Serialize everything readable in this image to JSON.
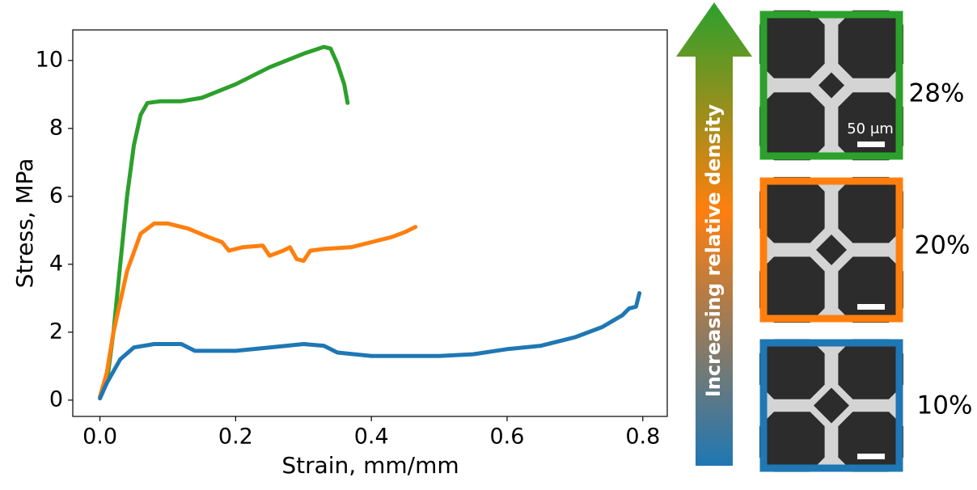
{
  "chart_data": {
    "type": "line",
    "xlabel": "Strain, mm/mm",
    "ylabel": "Stress, MPa",
    "xlim": [
      -0.04,
      0.836
    ],
    "ylim": [
      -0.48,
      10.9
    ],
    "xticks": [
      {
        "value": 0,
        "label": "0.0"
      },
      0.2,
      0.4,
      0.6,
      0.8
    ],
    "yticks": [
      0,
      2,
      4,
      6,
      8,
      10
    ],
    "grid": false,
    "arrow_label": "Increasing relative density",
    "scale_bar_label": "50 μm",
    "series": [
      {
        "name": "28%",
        "color": "#2ca02c",
        "x": [
          0,
          0.01,
          0.02,
          0.03,
          0.04,
          0.05,
          0.06,
          0.07,
          0.09,
          0.12,
          0.15,
          0.2,
          0.25,
          0.3,
          0.33,
          0.34,
          0.35,
          0.355,
          0.36,
          0.365
        ],
        "values": [
          0.1,
          0.5,
          2,
          4,
          6,
          7.5,
          8.4,
          8.75,
          8.8,
          8.8,
          8.9,
          9.3,
          9.8,
          10.2,
          10.4,
          10.35,
          9.9,
          9.6,
          9.3,
          8.75
        ]
      },
      {
        "name": "20%",
        "color": "#ff7f0e",
        "x": [
          0,
          0.01,
          0.02,
          0.04,
          0.06,
          0.08,
          0.1,
          0.13,
          0.16,
          0.18,
          0.19,
          0.21,
          0.24,
          0.25,
          0.27,
          0.28,
          0.29,
          0.3,
          0.31,
          0.33,
          0.37,
          0.4,
          0.43,
          0.45,
          0.465
        ],
        "values": [
          0.1,
          0.8,
          2,
          3.8,
          4.9,
          5.2,
          5.2,
          5.05,
          4.8,
          4.65,
          4.4,
          4.5,
          4.55,
          4.25,
          4.4,
          4.5,
          4.15,
          4.1,
          4.4,
          4.45,
          4.5,
          4.65,
          4.8,
          4.95,
          5.1
        ]
      },
      {
        "name": "10%",
        "color": "#1f77b4",
        "x": [
          0,
          0.01,
          0.03,
          0.05,
          0.08,
          0.12,
          0.14,
          0.2,
          0.25,
          0.3,
          0.33,
          0.35,
          0.4,
          0.45,
          0.5,
          0.55,
          0.6,
          0.65,
          0.7,
          0.74,
          0.77,
          0.78,
          0.79,
          0.795
        ],
        "values": [
          0.05,
          0.5,
          1.2,
          1.55,
          1.65,
          1.65,
          1.45,
          1.45,
          1.55,
          1.65,
          1.6,
          1.4,
          1.3,
          1.3,
          1.3,
          1.35,
          1.5,
          1.6,
          1.85,
          2.15,
          2.5,
          2.7,
          2.75,
          3.15
        ]
      }
    ]
  }
}
